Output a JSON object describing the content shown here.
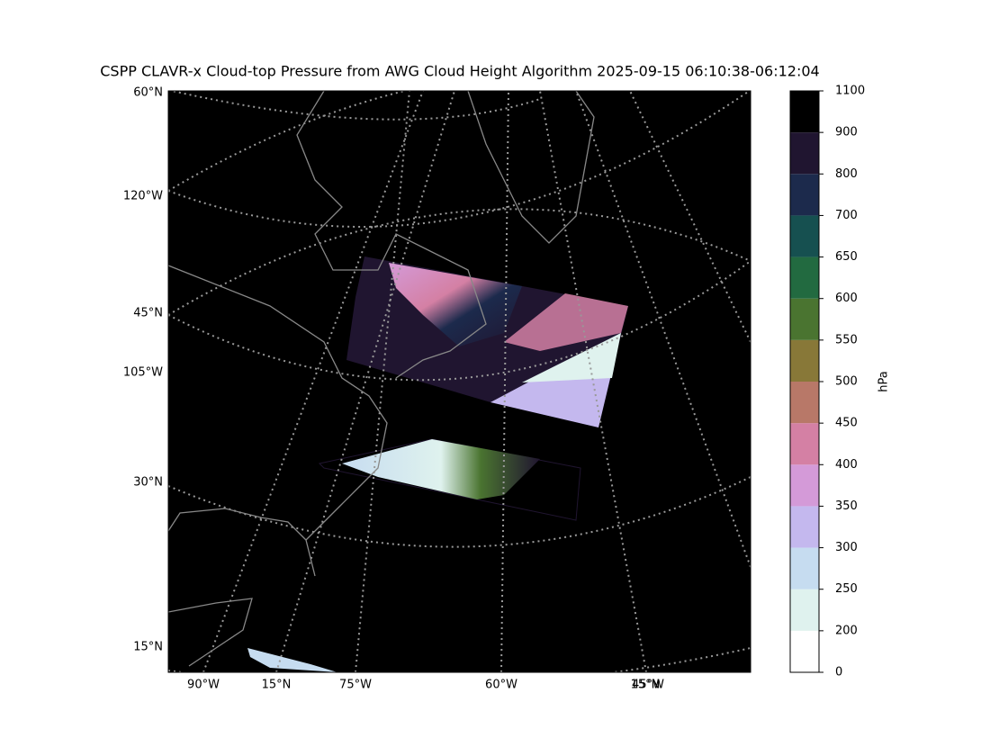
{
  "title": "CSPP CLAVR-x Cloud-top Pressure from AWG Cloud Height Algorithm 2025-09-15 06:10:38-06:12:04",
  "map": {
    "left_labels": [
      "60°N",
      "120°W",
      "45°N",
      "105°W",
      "30°N",
      "15°N"
    ],
    "bottom_labels": [
      "90°W",
      "15°N",
      "75°W",
      "60°W",
      "15°N",
      "45°W"
    ]
  },
  "colorbar": {
    "label": "hPa",
    "ticks": [
      0,
      200,
      250,
      300,
      350,
      400,
      450,
      500,
      550,
      600,
      650,
      700,
      800,
      900,
      1100
    ],
    "colors": [
      "#ffffff",
      "#dff2ee",
      "#c6dcf0",
      "#c4b8ee",
      "#d49ad8",
      "#d480a4",
      "#b87868",
      "#887838",
      "#4a7430",
      "#226a40",
      "#165050",
      "#1c2a4c",
      "#201530",
      "#000000"
    ]
  }
}
